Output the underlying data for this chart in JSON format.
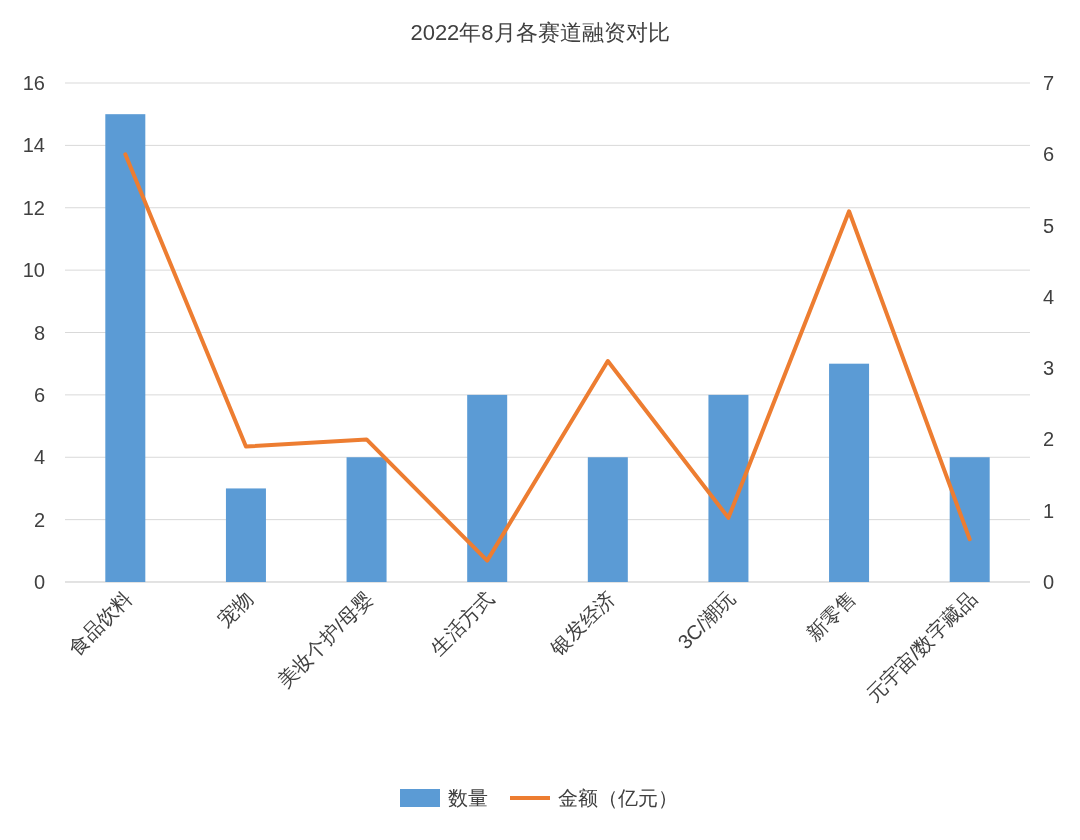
{
  "chart_data": {
    "type": "bar",
    "title": "2022年8月各赛道融资对比",
    "categories": [
      "食品饮料",
      "宠物",
      "美妆个护/母婴",
      "生活方式",
      "银发经济",
      "3C/潮玩",
      "新零售",
      "元宇宙/数字藏品"
    ],
    "series": [
      {
        "name": "数量",
        "color": "#5b9bd5",
        "values": [
          15,
          3,
          4,
          6,
          4,
          6,
          7,
          4
        ]
      },
      {
        "name": "金额（亿元）",
        "type": "line",
        "axis": "y2",
        "color": "#ed7d31",
        "values": [
          6.0,
          1.9,
          2.0,
          0.3,
          3.1,
          0.9,
          5.2,
          0.6
        ]
      }
    ],
    "ylim": [
      0,
      16
    ],
    "yticks": [
      0,
      2,
      4,
      6,
      8,
      10,
      12,
      14,
      16
    ],
    "y2lim": [
      0,
      7
    ],
    "y2ticks": [
      0,
      1,
      2,
      3,
      4,
      5,
      6,
      7
    ],
    "grid": "y",
    "legend": "bottom"
  }
}
